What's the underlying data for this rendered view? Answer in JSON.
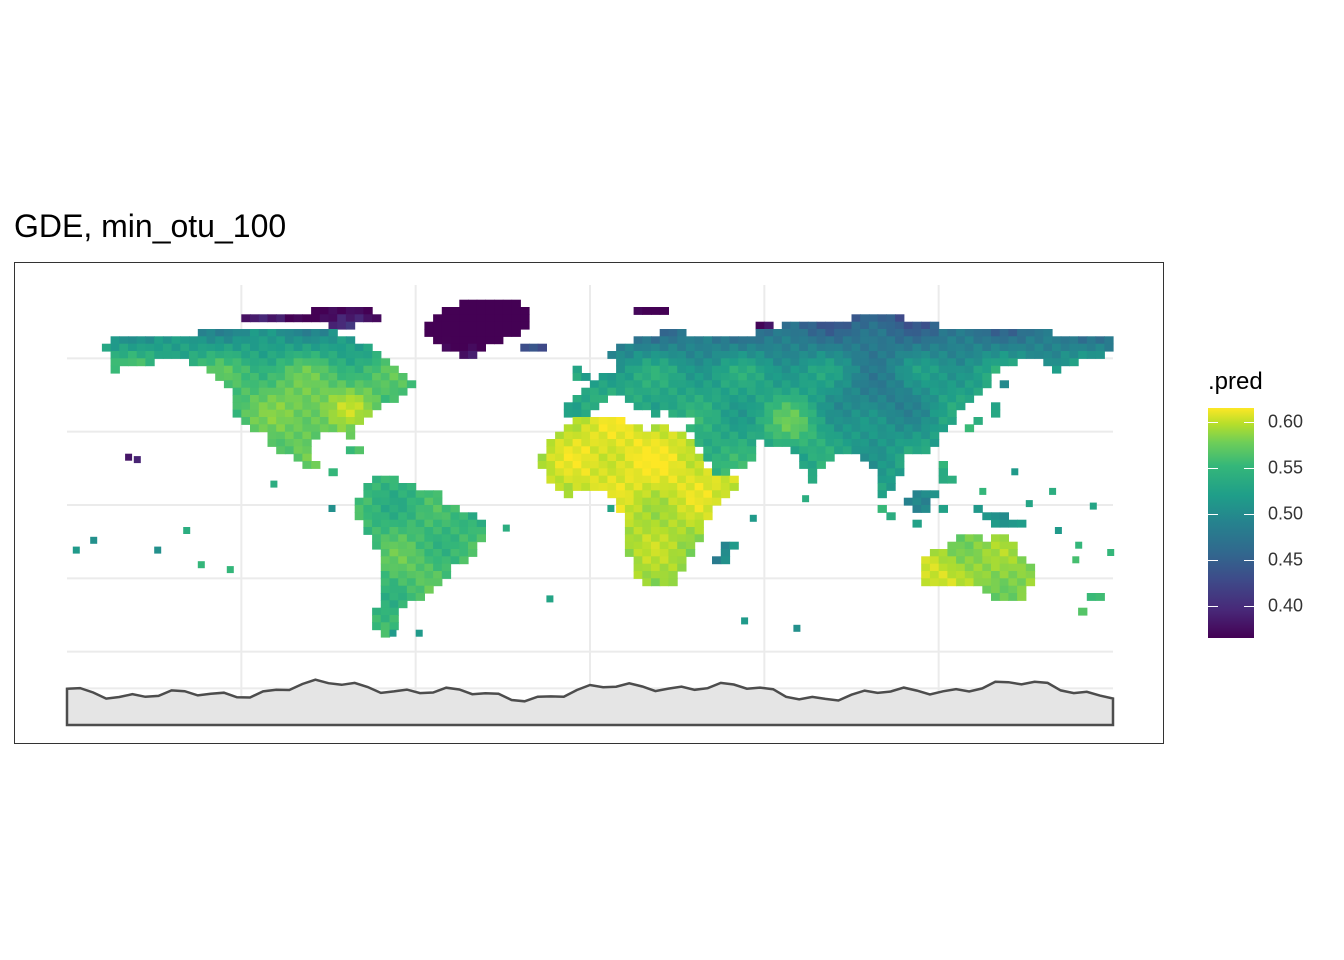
{
  "title": "GDE, min_otu_100",
  "legend": {
    "title": ".pred",
    "labels": [
      "0.60",
      "0.55",
      "0.50",
      "0.45",
      "0.40"
    ],
    "values": [
      0.6,
      0.55,
      0.5,
      0.45,
      0.4
    ],
    "range": [
      0.365,
      0.615
    ],
    "palette": "viridis"
  },
  "map": {
    "projection": "equirectangular",
    "longitude_range": [
      -180,
      180
    ],
    "latitude_range": [
      -90,
      90
    ],
    "grid": true,
    "axis_labels_shown": false,
    "land_outline_color": "#4d4d4d",
    "antarctica_fill": "#e5e5e5",
    "missing_data": "white",
    "regions": [
      {
        "name": "North America",
        "value": 0.54
      },
      {
        "name": "Canada / Arctic",
        "value": 0.45
      },
      {
        "name": "Greenland",
        "value": 0.4
      },
      {
        "name": "Central America",
        "value": 0.55
      },
      {
        "name": "South America",
        "value": 0.53
      },
      {
        "name": "Africa",
        "value": 0.58
      },
      {
        "name": "Europe",
        "value": 0.53
      },
      {
        "name": "Northern Asia",
        "value": 0.49
      },
      {
        "name": "Southern Asia",
        "value": 0.53
      },
      {
        "name": "Southeast Asia",
        "value": 0.52
      },
      {
        "name": "Australia",
        "value": 0.58
      },
      {
        "name": "Madagascar",
        "value": 0.49
      },
      {
        "name": "Pacific Islands",
        "value": 0.49
      },
      {
        "name": "Hawaii",
        "value": 0.38
      }
    ]
  }
}
